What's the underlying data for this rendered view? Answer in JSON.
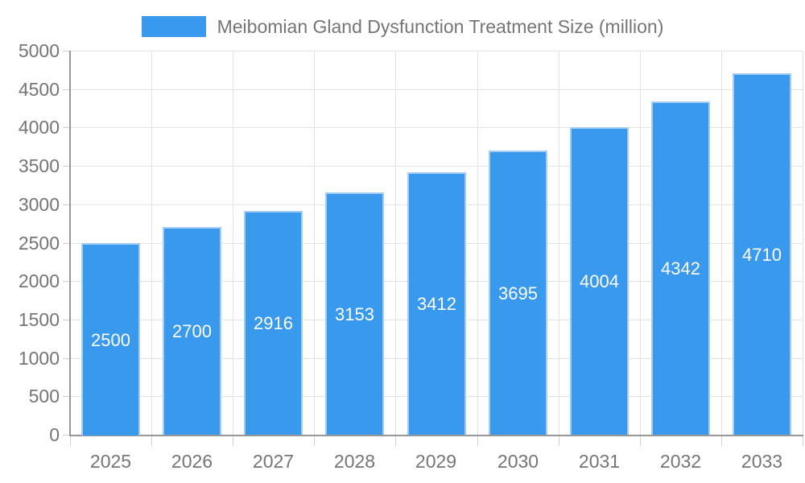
{
  "legend": {
    "label": "Meibomian Gland Dysfunction Treatment Size (million)"
  },
  "chart_data": {
    "type": "bar",
    "title": "Meibomian Gland Dysfunction Treatment Size (million)",
    "categories": [
      "2025",
      "2026",
      "2027",
      "2028",
      "2029",
      "2030",
      "2031",
      "2032",
      "2033"
    ],
    "values": [
      2500,
      2700,
      2916,
      3153,
      3412,
      3695,
      4004,
      4342,
      4710
    ],
    "xlabel": "",
    "ylabel": "",
    "ylim": [
      0,
      5000
    ],
    "ytick_step": 500,
    "grid": true,
    "legend_position": "top",
    "value_labels": "inside-center",
    "colors": {
      "bar_fill": "#3999ec",
      "bar_border": "#a5cdf3",
      "grid": "#e3e3e3",
      "axis": "#989898",
      "tick": "#cfcfcf",
      "label_text": "#757575",
      "value_text": "#ffffff"
    }
  }
}
